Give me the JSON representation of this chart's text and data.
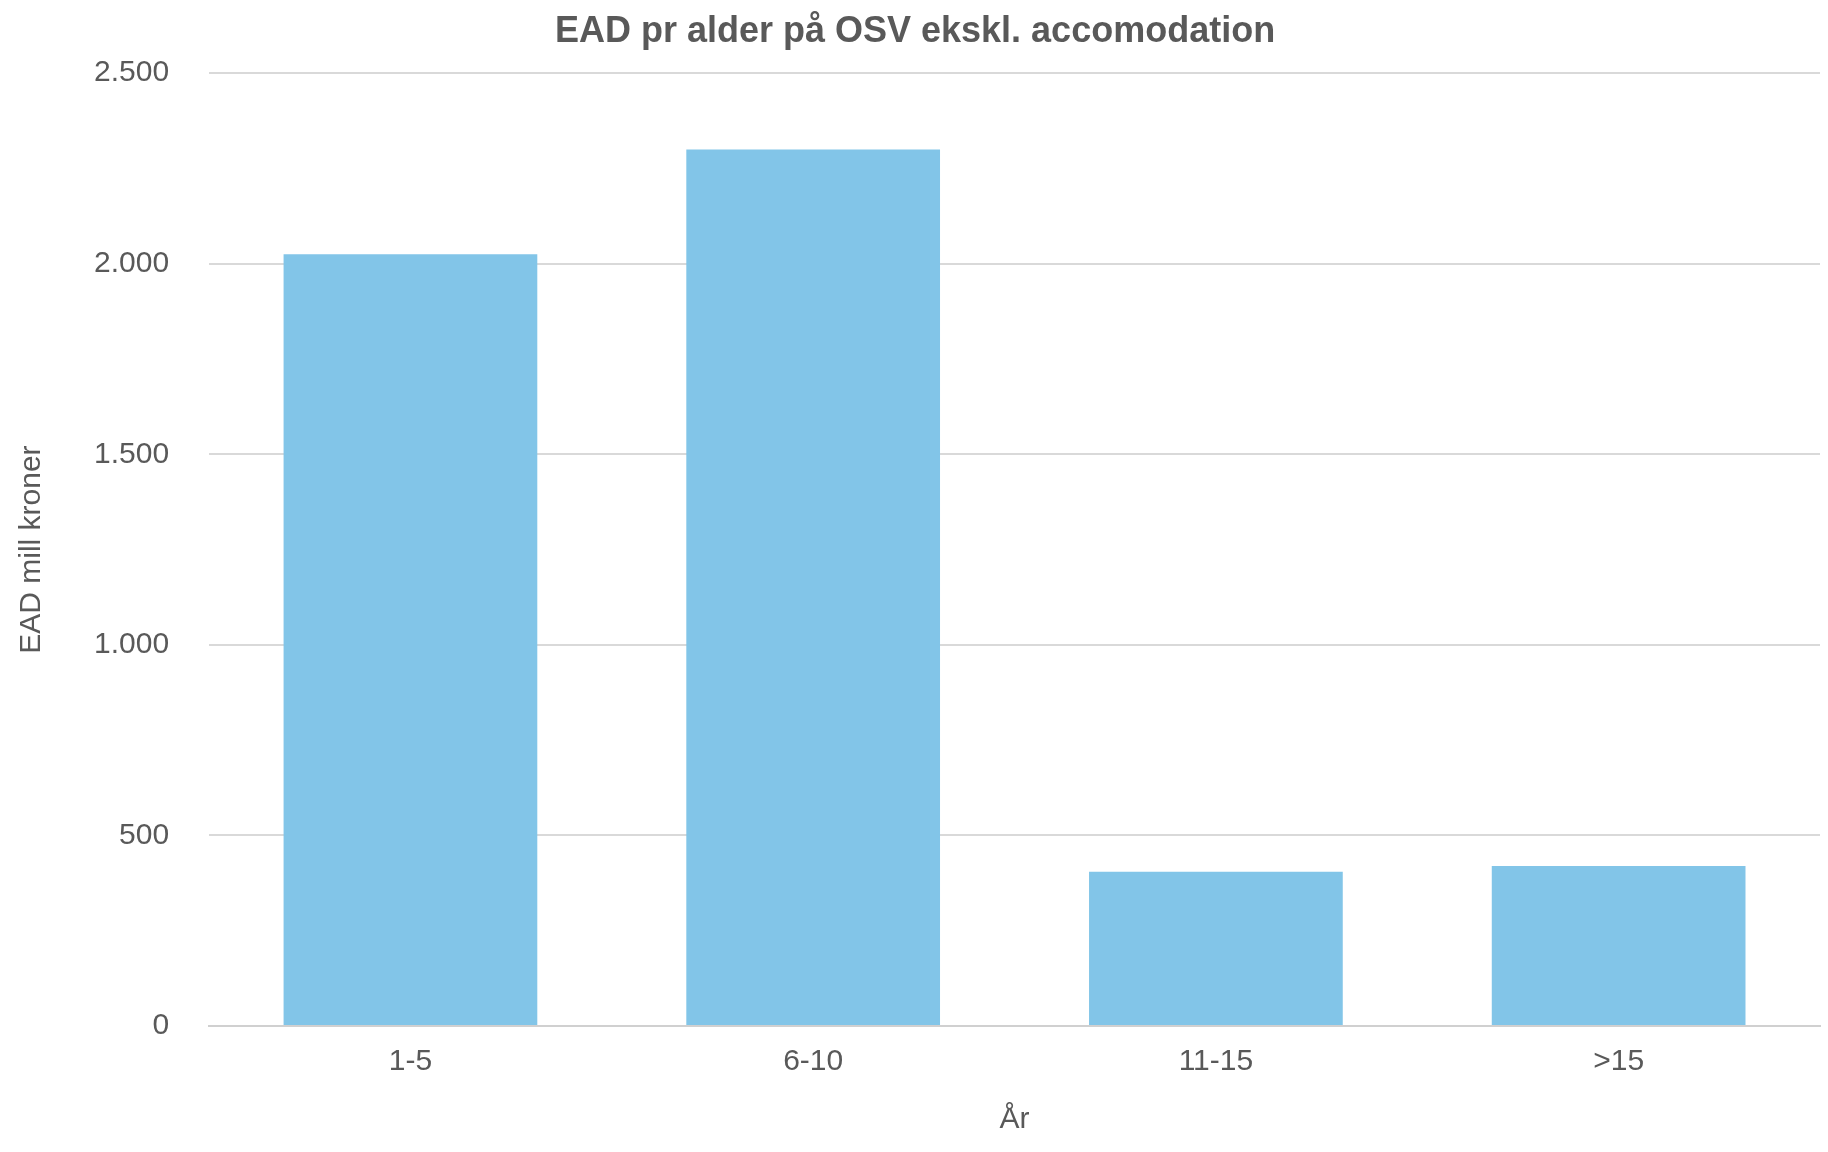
{
  "chart_data": {
    "type": "bar",
    "title": "EAD pr alder på OSV ekskl. accomodation",
    "xlabel": "År",
    "ylabel": "EAD mill kroner",
    "categories": [
      "1-5",
      "6-10",
      "11-15",
      ">15"
    ],
    "values": [
      2025,
      2300,
      405,
      420
    ],
    "color": "#82c5e8",
    "ylim": [
      0,
      2500
    ],
    "yticks": [
      0,
      500,
      {
        "value": 1000,
        "label": "1.000"
      },
      {
        "value": 1500,
        "label": "1.500"
      },
      {
        "value": 2000,
        "label": "2.000"
      },
      {
        "value": 2500,
        "label": "2.500"
      }
    ],
    "grid": "y",
    "legend": false
  }
}
